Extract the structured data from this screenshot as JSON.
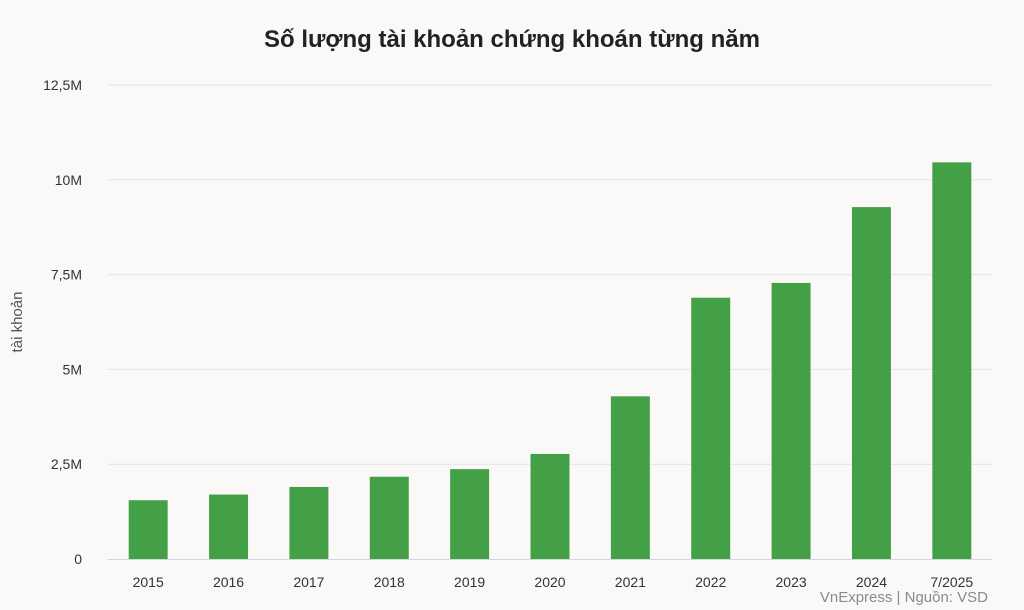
{
  "chart_data": {
    "type": "bar",
    "title": "Số lượng tài khoản chứng khoán từng năm",
    "ylabel": "tài khoản",
    "xlabel": "",
    "categories": [
      "2015",
      "2016",
      "2017",
      "2018",
      "2019",
      "2020",
      "2021",
      "2022",
      "2023",
      "2024",
      "7/2025"
    ],
    "values": [
      1.55,
      1.7,
      1.9,
      2.17,
      2.37,
      2.77,
      4.29,
      6.89,
      7.28,
      9.28,
      10.46
    ],
    "unit": "M",
    "ylim": [
      0,
      12.5
    ],
    "yticks": [
      0,
      2.5,
      5,
      7.5,
      10,
      12.5
    ],
    "ytick_labels": [
      "0",
      "2,5M",
      "5M",
      "7,5M",
      "10M",
      "12,5M"
    ],
    "grid": true,
    "legend": "none",
    "bar_color": "#43a047",
    "grid_color": "#e3e3e3"
  },
  "footer": {
    "credit": "VnExpress | Nguồn: VSD"
  }
}
